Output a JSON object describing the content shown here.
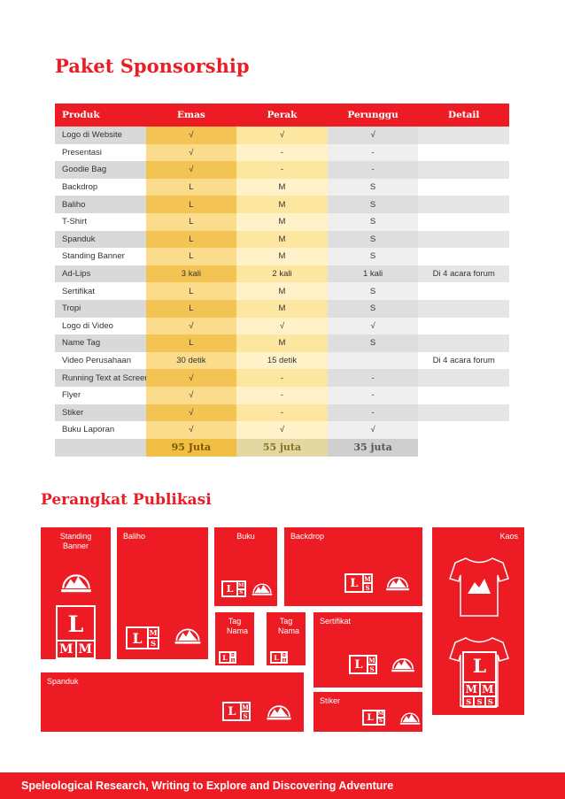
{
  "header": {
    "title": "Paket Sponsorship"
  },
  "table": {
    "columns": [
      "Produk",
      "Emas",
      "Perak",
      "Perunggu",
      "Detail"
    ],
    "rows": [
      [
        "Logo di Website",
        "√",
        "√",
        "√",
        null
      ],
      [
        "Presentasi",
        "√",
        "-",
        "-",
        null
      ],
      [
        "Goodie Bag",
        "√",
        "-",
        "-",
        null
      ],
      [
        "Backdrop",
        "L",
        "M",
        "S",
        null
      ],
      [
        "Baliho",
        "L",
        "M",
        "S",
        null
      ],
      [
        "T-Shirt",
        "L",
        "M",
        "S",
        null
      ],
      [
        "Spanduk",
        "L",
        "M",
        "S",
        null
      ],
      [
        "Standing Banner",
        "L",
        "M",
        "S",
        null
      ],
      [
        "Ad-Lips",
        "3 kali",
        "2 kali",
        "1 kali",
        "Di 4 acara forum"
      ],
      [
        "Sertifikat",
        "L",
        "M",
        "S",
        null
      ],
      [
        "Tropi",
        "L",
        "M",
        "S",
        null
      ],
      [
        "Logo di Video",
        "√",
        "√",
        "√",
        null
      ],
      [
        "Name Tag",
        "L",
        "M",
        "S",
        null
      ],
      [
        "Video Perusahaan",
        "30 detik",
        "15 detik",
        null,
        "Di 4 acara forum"
      ],
      [
        "Running Text at Screen",
        "√",
        "-",
        "-",
        null
      ],
      [
        "Flyer",
        "√",
        "-",
        "-",
        null
      ],
      [
        "Stiker",
        "√",
        "-",
        "-",
        null
      ],
      [
        "Buku Laporan",
        "√",
        "√",
        "√",
        null
      ]
    ],
    "totals": [
      "95 Juta",
      "55 juta",
      "35 juta"
    ]
  },
  "publikasi": {
    "title": "Perangkat Publikasi",
    "items": [
      "Standing Banner",
      "Baliho",
      "Buku",
      "Backdrop",
      "Kaos",
      "Tag Nama",
      "Tag Nama",
      "Sertifikat",
      "Spanduk",
      "Stiker"
    ],
    "sizes": [
      "L",
      "M",
      "S"
    ]
  },
  "footer": {
    "text": "Speleological Research, Writing to Explore and Discovering Adventure"
  }
}
